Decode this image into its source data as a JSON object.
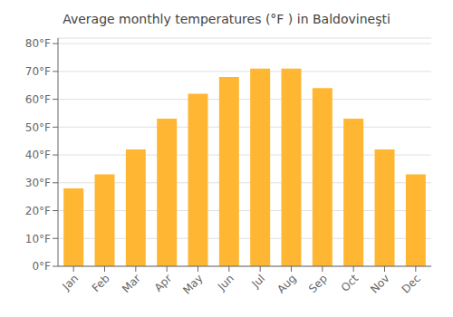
{
  "chart_data": {
    "type": "bar",
    "title": "Average monthly temperatures (°F ) in Baldovineşti",
    "categories": [
      "Jan",
      "Feb",
      "Mar",
      "Apr",
      "May",
      "Jun",
      "Jul",
      "Aug",
      "Sep",
      "Oct",
      "Nov",
      "Dec"
    ],
    "values": [
      28,
      33,
      42,
      53,
      62,
      68,
      71,
      71,
      64,
      53,
      42,
      33
    ],
    "color": "#FFB733",
    "ylim": [
      0,
      82
    ],
    "yticks": [
      {
        "value": 0,
        "label": "0°F"
      },
      {
        "value": 10,
        "label": "10°F"
      },
      {
        "value": 20,
        "label": "20°F"
      },
      {
        "value": 30,
        "label": "30°F"
      },
      {
        "value": 40,
        "label": "40°F"
      },
      {
        "value": 50,
        "label": "50°F"
      },
      {
        "value": 60,
        "label": "60°F"
      },
      {
        "value": 70,
        "label": "70°F"
      },
      {
        "value": 80,
        "label": "80°F"
      }
    ],
    "grid": true
  }
}
